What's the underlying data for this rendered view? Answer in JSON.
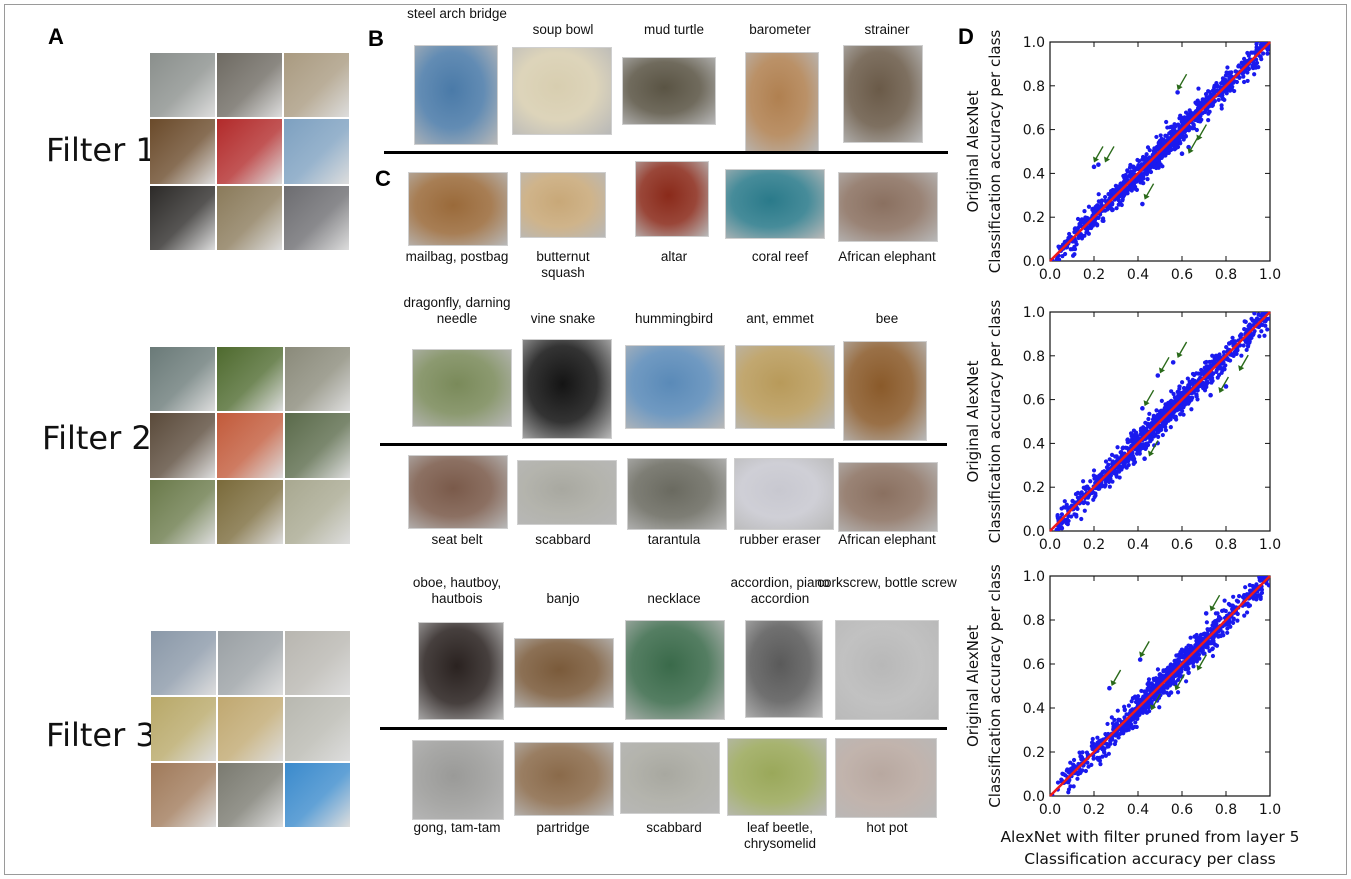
{
  "panels": {
    "a": "A",
    "b": "B",
    "c": "C",
    "d": "D"
  },
  "filters": [
    "Filter 1",
    "Filter 2",
    "Filter 3"
  ],
  "mosaic_colors": [
    [
      "#8a8f8c",
      "#6e6a62",
      "#a99a80",
      "#6a4a2a",
      "#b22a2a",
      "#7da0c0",
      "#2c2a28",
      "#8a7a5a",
      "#6c6c70"
    ],
    [
      "#6a7a78",
      "#4e6a2e",
      "#8a8a7a",
      "#5a4a3a",
      "#c25a3a",
      "#5a6a4a",
      "#6a7a4a",
      "#7a6a3a",
      "#a8a890"
    ],
    [
      "#8a98a8",
      "#9aa0a4",
      "#b8b6b0",
      "#b8a868",
      "#c0a870",
      "#b8b8b0",
      "#a07a5a",
      "#7a7a70",
      "#3a8acc"
    ]
  ],
  "rows": [
    {
      "items": [
        {
          "label": "steel arch bridge",
          "color": "#4a7aa8"
        },
        {
          "label": "soup bowl",
          "color": "#d8ceb0"
        },
        {
          "label": "mud turtle",
          "color": "#5a5444"
        },
        {
          "label": "barometer",
          "color": "#b08050"
        },
        {
          "label": "strainer",
          "color": "#6a5a48"
        }
      ]
    },
    {
      "items": [
        {
          "label": "mailbag, postbag",
          "color": "#9a6a3a"
        },
        {
          "label": "butternut squash",
          "color": "#c8a878"
        },
        {
          "label": "altar",
          "color": "#8a2a1a"
        },
        {
          "label": "coral reef",
          "color": "#2a7a8a"
        },
        {
          "label": "African elephant",
          "color": "#8a7060"
        }
      ]
    },
    {
      "items": [
        {
          "label": "dragonfly, darning needle",
          "color": "#7a8a5a"
        },
        {
          "label": "vine snake",
          "color": "#141414"
        },
        {
          "label": "hummingbird",
          "color": "#5a8ab8"
        },
        {
          "label": "ant, emmet",
          "color": "#b89a5a"
        },
        {
          "label": "bee",
          "color": "#8a5a2a"
        }
      ]
    },
    {
      "items": [
        {
          "label": "seat belt",
          "color": "#7a5a4a"
        },
        {
          "label": "scabbard",
          "color": "#a8a8a0"
        },
        {
          "label": "tarantula",
          "color": "#6a6a60"
        },
        {
          "label": "rubber eraser",
          "color": "#c8c8d0"
        },
        {
          "label": "African elephant",
          "color": "#8a7060"
        }
      ]
    },
    {
      "items": [
        {
          "label": "oboe, hautboy, hautbois",
          "color": "#2a2220"
        },
        {
          "label": "banjo",
          "color": "#7a5a3a"
        },
        {
          "label": "necklace",
          "color": "#3a6a4a"
        },
        {
          "label": "accordion, piano accordion",
          "color": "#5a5a5a"
        },
        {
          "label": "corkscrew, bottle screw",
          "color": "#b8b8b8"
        }
      ]
    },
    {
      "items": [
        {
          "label": "gong, tam-tam",
          "color": "#9a9a98"
        },
        {
          "label": "partridge",
          "color": "#8a6a4a"
        },
        {
          "label": "scabbard",
          "color": "#a8a8a0"
        },
        {
          "label": "leaf beetle, chrysomelid",
          "color": "#9aa85a"
        },
        {
          "label": "hot pot",
          "color": "#b8a8a0"
        }
      ]
    }
  ],
  "chart_data": [
    {
      "type": "scatter",
      "ylabel": [
        "Original AlexNet",
        "Classification accuracy per class"
      ],
      "xlabel": "",
      "xlim": [
        0.0,
        1.0
      ],
      "ylim": [
        0.0,
        1.0
      ],
      "xticks": [
        "0.0",
        "0.2",
        "0.4",
        "0.6",
        "0.8",
        "1.0"
      ],
      "yticks": [
        "0.0",
        "0.2",
        "0.4",
        "0.6",
        "0.8",
        "1.0"
      ],
      "point_color": "#1a1aee",
      "line_color": "#ee1a1a",
      "identity_line": true,
      "n_points": 1000,
      "spread": 0.03,
      "seed": 11,
      "outliers": [
        [
          0.2,
          0.43
        ],
        [
          0.22,
          0.44
        ],
        [
          0.58,
          0.77
        ],
        [
          0.42,
          0.26
        ],
        [
          0.63,
          0.52
        ],
        [
          0.6,
          0.49
        ]
      ],
      "arrows": [
        [
          0.2,
          0.45
        ],
        [
          0.25,
          0.45
        ],
        [
          0.58,
          0.78
        ],
        [
          0.43,
          0.28
        ],
        [
          0.67,
          0.55
        ],
        [
          0.63,
          0.49
        ]
      ]
    },
    {
      "type": "scatter",
      "ylabel": [
        "Original AlexNet",
        "Classification accuracy per class"
      ],
      "xlabel": "",
      "xlim": [
        0.0,
        1.0
      ],
      "ylim": [
        0.0,
        1.0
      ],
      "xticks": [
        "0.0",
        "0.2",
        "0.4",
        "0.6",
        "0.8",
        "1.0"
      ],
      "yticks": [
        "0.0",
        "0.2",
        "0.4",
        "0.6",
        "0.8",
        "1.0"
      ],
      "point_color": "#1a1aee",
      "line_color": "#ee1a1a",
      "identity_line": true,
      "n_points": 1000,
      "spread": 0.03,
      "seed": 23,
      "outliers": [
        [
          0.42,
          0.56
        ],
        [
          0.49,
          0.71
        ],
        [
          0.56,
          0.77
        ],
        [
          0.43,
          0.33
        ],
        [
          0.8,
          0.66
        ],
        [
          0.73,
          0.62
        ]
      ],
      "arrows": [
        [
          0.43,
          0.57
        ],
        [
          0.5,
          0.72
        ],
        [
          0.58,
          0.79
        ],
        [
          0.45,
          0.34
        ],
        [
          0.86,
          0.73
        ],
        [
          0.77,
          0.63
        ]
      ]
    },
    {
      "type": "scatter",
      "ylabel": [
        "Original AlexNet",
        "Classification accuracy per class"
      ],
      "xlabel": [
        "AlexNet with filter pruned from layer 5",
        "Classification accuracy per class"
      ],
      "xlim": [
        0.0,
        1.0
      ],
      "ylim": [
        0.0,
        1.0
      ],
      "xticks": [
        "0.0",
        "0.2",
        "0.4",
        "0.6",
        "0.8",
        "1.0"
      ],
      "yticks": [
        "0.0",
        "0.2",
        "0.4",
        "0.6",
        "0.8",
        "1.0"
      ],
      "point_color": "#1a1aee",
      "line_color": "#ee1a1a",
      "identity_line": true,
      "n_points": 1000,
      "spread": 0.03,
      "seed": 37,
      "outliers": [
        [
          0.27,
          0.49
        ],
        [
          0.41,
          0.62
        ],
        [
          0.71,
          0.83
        ],
        [
          0.44,
          0.38
        ],
        [
          0.63,
          0.56
        ],
        [
          0.55,
          0.47
        ]
      ],
      "arrows": [
        [
          0.28,
          0.5
        ],
        [
          0.41,
          0.63
        ],
        [
          0.73,
          0.84
        ],
        [
          0.46,
          0.39
        ],
        [
          0.67,
          0.57
        ],
        [
          0.57,
          0.48
        ]
      ]
    }
  ]
}
